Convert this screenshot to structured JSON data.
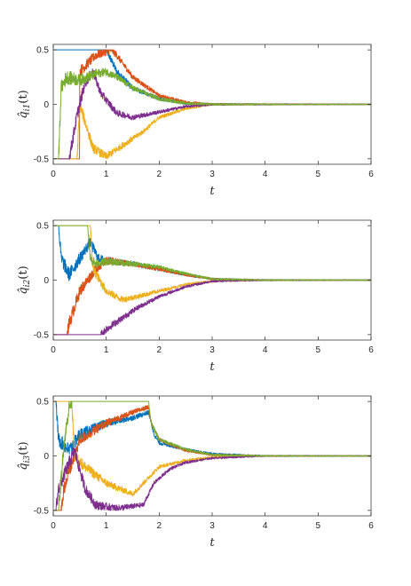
{
  "chart_data": [
    {
      "type": "line",
      "ylabel": "q̂_{i1}(t)",
      "ylabel_main": "q̂",
      "ylabel_sub": "i1",
      "ylabel_tail": "(t)",
      "xlabel": "t",
      "xlim": [
        0,
        6
      ],
      "ylim": [
        -0.55,
        0.55
      ],
      "xticks": [
        "0",
        "1",
        "2",
        "3",
        "4",
        "5",
        "6"
      ],
      "yticks": [
        "-0.5",
        "0",
        "0.5"
      ],
      "grid": false,
      "series": [
        {
          "color": "#0072BD",
          "x": [
            0,
            1.0,
            1.05,
            1.2,
            1.5,
            2.0,
            2.5,
            3.0,
            4.0,
            6.0
          ],
          "y": [
            0.5,
            0.5,
            0.45,
            0.3,
            0.15,
            0.05,
            0.01,
            0.0,
            0.0,
            0.0
          ]
        },
        {
          "color": "#D95319",
          "x": [
            0,
            0.5,
            0.5,
            0.8,
            1.1,
            1.2,
            1.5,
            2.0,
            2.5,
            3.0,
            4.0,
            6.0
          ],
          "y": [
            -0.5,
            -0.5,
            0.3,
            0.45,
            0.5,
            0.45,
            0.25,
            0.08,
            0.02,
            0.0,
            0.0,
            0.0
          ]
        },
        {
          "color": "#EDB120",
          "x": [
            0,
            0.45,
            0.5,
            0.75,
            1.0,
            1.3,
            1.7,
            2.0,
            2.5,
            3.0,
            4.0,
            6.0
          ],
          "y": [
            -0.5,
            -0.5,
            0.0,
            -0.4,
            -0.48,
            -0.38,
            -0.25,
            -0.12,
            -0.04,
            0.0,
            0.0,
            0.0
          ]
        },
        {
          "color": "#7E2F8E",
          "x": [
            0,
            0.3,
            0.45,
            0.6,
            0.75,
            0.9,
            1.2,
            1.5,
            2.0,
            2.5,
            3.0,
            4.0,
            6.0
          ],
          "y": [
            -0.5,
            -0.5,
            -0.1,
            0.2,
            0.3,
            0.1,
            -0.08,
            -0.12,
            -0.07,
            -0.02,
            0.0,
            0.0,
            0.0
          ]
        },
        {
          "color": "#77AC30",
          "x": [
            0,
            0.1,
            0.15,
            0.25,
            0.5,
            0.8,
            1.0,
            1.2,
            1.5,
            2.0,
            2.5,
            3.0,
            4.0,
            6.0
          ],
          "y": [
            -0.5,
            -0.5,
            0.15,
            0.25,
            0.22,
            0.28,
            0.3,
            0.25,
            0.15,
            0.05,
            0.01,
            0.0,
            0.0,
            0.0
          ]
        }
      ]
    },
    {
      "type": "line",
      "ylabel": "q̂_{i2}(t)",
      "ylabel_main": "q̂",
      "ylabel_sub": "i2",
      "ylabel_tail": "(t)",
      "xlabel": "t",
      "xlim": [
        0,
        6
      ],
      "ylim": [
        -0.55,
        0.55
      ],
      "xticks": [
        "0",
        "1",
        "2",
        "3",
        "4",
        "5",
        "6"
      ],
      "yticks": [
        "-0.5",
        "0",
        "0.5"
      ],
      "grid": false,
      "series": [
        {
          "color": "#0072BD",
          "x": [
            0,
            0.1,
            0.15,
            0.3,
            0.5,
            0.7,
            0.85,
            1.0,
            1.5,
            2.0,
            2.5,
            3.0,
            4.0,
            6.0
          ],
          "y": [
            0.5,
            0.5,
            0.2,
            0.05,
            0.2,
            0.35,
            0.2,
            0.18,
            0.15,
            0.1,
            0.05,
            0.01,
            0.0,
            0.0
          ]
        },
        {
          "color": "#D95319",
          "x": [
            0,
            0.25,
            0.3,
            0.5,
            0.8,
            1.0,
            1.5,
            2.0,
            2.5,
            3.0,
            4.0,
            6.0
          ],
          "y": [
            -0.5,
            -0.5,
            -0.4,
            -0.1,
            0.1,
            0.18,
            0.15,
            0.1,
            0.05,
            0.01,
            0.0,
            0.0
          ]
        },
        {
          "color": "#EDB120",
          "x": [
            0,
            0.7,
            0.75,
            1.0,
            1.3,
            1.6,
            2.0,
            2.5,
            3.0,
            4.0,
            6.0
          ],
          "y": [
            0.5,
            0.5,
            0.1,
            -0.1,
            -0.18,
            -0.15,
            -0.1,
            -0.04,
            -0.01,
            0.0,
            0.0
          ]
        },
        {
          "color": "#7E2F8E",
          "x": [
            0,
            0.9,
            1.0,
            1.3,
            1.6,
            2.0,
            2.5,
            3.0,
            4.0,
            6.0
          ],
          "y": [
            -0.5,
            -0.5,
            -0.45,
            -0.35,
            -0.25,
            -0.15,
            -0.06,
            -0.01,
            0.0,
            0.0
          ]
        },
        {
          "color": "#77AC30",
          "x": [
            0,
            0.65,
            0.7,
            0.8,
            1.0,
            1.5,
            2.0,
            2.5,
            3.0,
            4.0,
            6.0
          ],
          "y": [
            0.5,
            0.5,
            0.2,
            0.15,
            0.17,
            0.15,
            0.12,
            0.06,
            0.01,
            0.0,
            0.0
          ]
        }
      ]
    },
    {
      "type": "line",
      "ylabel": "q̂_{i3}(t)",
      "ylabel_main": "q̂",
      "ylabel_sub": "i3",
      "ylabel_tail": "(t)",
      "xlabel": "t",
      "xlim": [
        0,
        6
      ],
      "ylim": [
        -0.55,
        0.55
      ],
      "xticks": [
        "0",
        "1",
        "2",
        "3",
        "4",
        "5",
        "6"
      ],
      "yticks": [
        "-0.5",
        "0",
        "0.5"
      ],
      "grid": false,
      "series": [
        {
          "color": "#0072BD",
          "x": [
            0,
            0.05,
            0.1,
            0.3,
            0.5,
            1.0,
            1.5,
            1.8,
            1.9,
            2.0,
            2.5,
            3.0,
            4.0,
            6.0
          ],
          "y": [
            0.5,
            0.5,
            0.15,
            0.05,
            0.2,
            0.3,
            0.35,
            0.4,
            0.2,
            0.12,
            0.06,
            0.02,
            0.0,
            0.0
          ]
        },
        {
          "color": "#D95319",
          "x": [
            0,
            0.15,
            0.2,
            0.5,
            1.0,
            1.5,
            1.8,
            1.85,
            2.0,
            2.5,
            3.0,
            4.0,
            6.0
          ],
          "y": [
            -0.5,
            -0.5,
            -0.3,
            0.15,
            0.3,
            0.4,
            0.45,
            0.3,
            0.15,
            0.05,
            0.01,
            0.0,
            0.0
          ]
        },
        {
          "color": "#EDB120",
          "x": [
            0,
            0.35,
            0.4,
            0.6,
            1.0,
            1.5,
            1.8,
            2.0,
            2.5,
            3.0,
            4.0,
            6.0
          ],
          "y": [
            0.5,
            0.5,
            0.0,
            -0.1,
            -0.25,
            -0.35,
            -0.2,
            -0.1,
            -0.04,
            -0.01,
            0.0,
            0.0
          ]
        },
        {
          "color": "#7E2F8E",
          "x": [
            0,
            0.05,
            0.1,
            0.4,
            0.6,
            0.8,
            1.2,
            1.7,
            1.9,
            2.2,
            2.5,
            3.0,
            4.0,
            6.0
          ],
          "y": [
            -0.5,
            -0.5,
            -0.3,
            0.05,
            -0.3,
            -0.45,
            -0.48,
            -0.45,
            -0.25,
            -0.12,
            -0.06,
            -0.02,
            0.0,
            0.0
          ]
        },
        {
          "color": "#77AC30",
          "x": [
            0,
            0.1,
            0.2,
            0.3,
            0.35,
            1.8,
            1.85,
            2.0,
            2.5,
            3.0,
            4.0,
            6.0
          ],
          "y": [
            -0.5,
            -0.5,
            0.1,
            0.45,
            0.5,
            0.5,
            0.3,
            0.15,
            0.06,
            0.01,
            0.0,
            0.0
          ]
        }
      ]
    }
  ]
}
